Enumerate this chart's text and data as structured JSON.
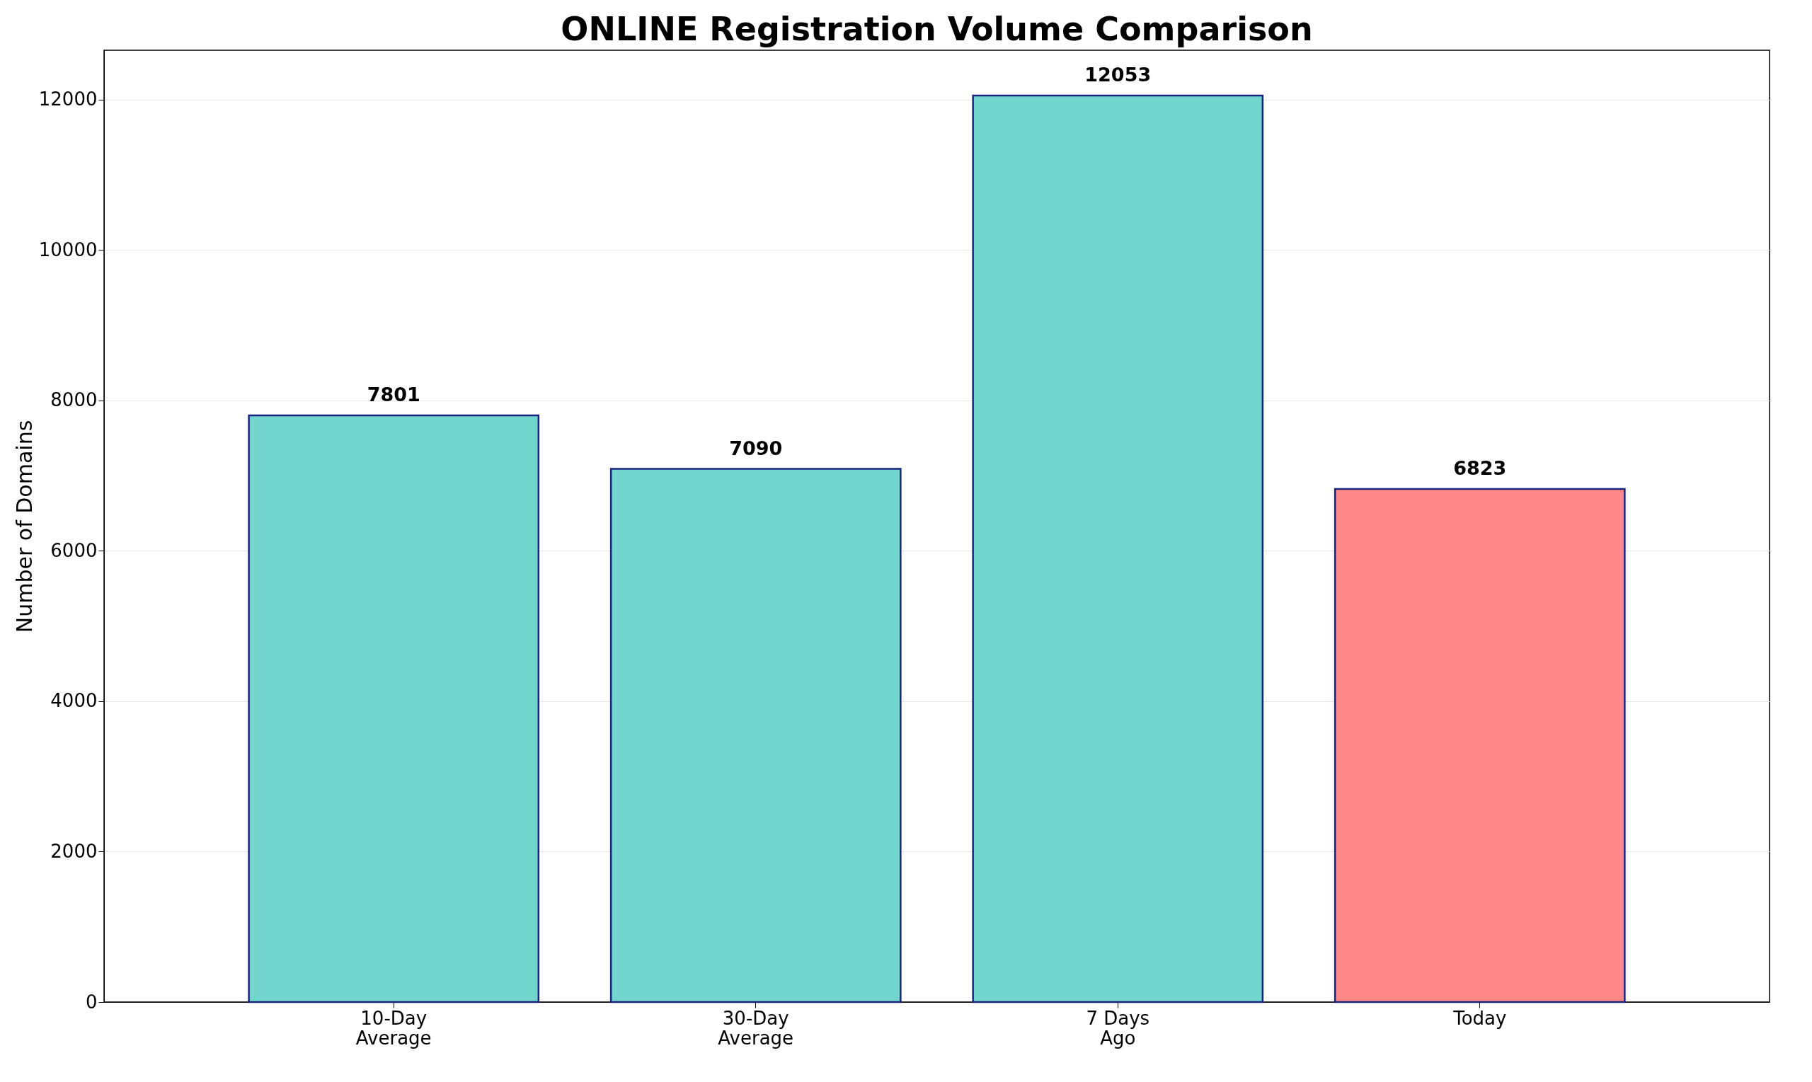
{
  "chart_data": {
    "type": "bar",
    "title": "ONLINE Registration Volume Comparison",
    "ylabel": "Number of Domains",
    "categories": [
      "10-Day\nAverage",
      "30-Day\nAverage",
      "7 Days\nAgo",
      "Today"
    ],
    "values": [
      7801,
      7090,
      12053,
      6823
    ],
    "colors": [
      "#72d5ce",
      "#72d5ce",
      "#72d5ce",
      "#ff8888"
    ],
    "ylim": [
      0,
      12656
    ],
    "yticks": [
      0,
      2000,
      4000,
      6000,
      8000,
      10000,
      12000
    ],
    "grid": "y",
    "data_labels": true
  }
}
